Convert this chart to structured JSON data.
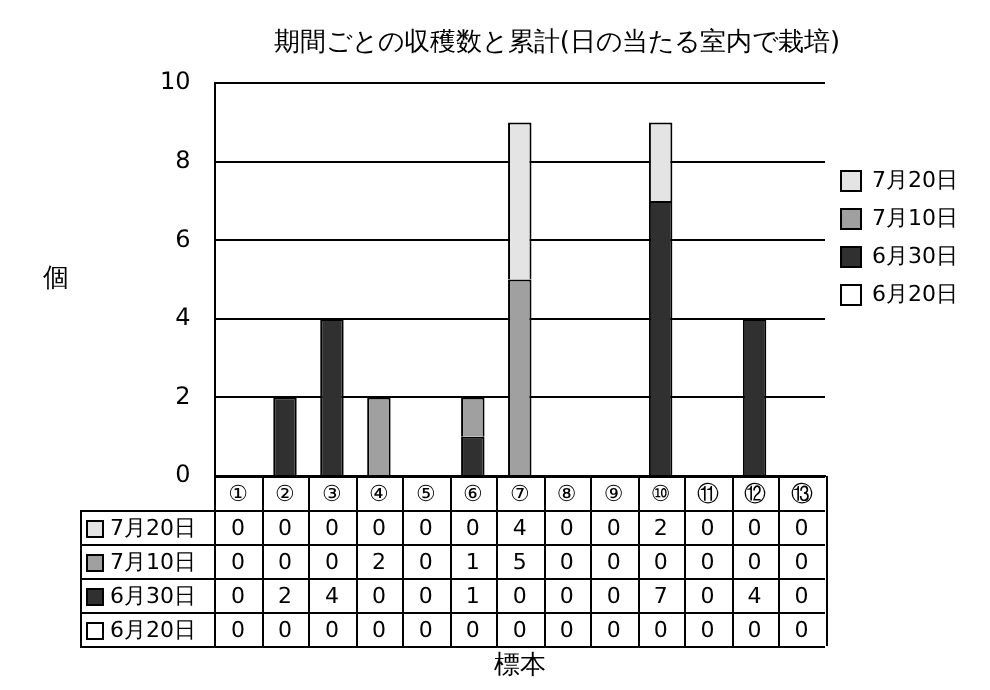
{
  "chart_data": {
    "type": "bar",
    "title": "期間ごとの収穫数と累計(日の当たる室内で栽培)",
    "annotations": [
      "標本"
    ],
    "ylabel": "個",
    "categories": [
      "①",
      "②",
      "③",
      "④",
      "⑤",
      "⑥",
      "⑦",
      "⑧",
      "⑨",
      "⑩",
      "⑪",
      "⑫",
      "⑬"
    ],
    "series": [
      {
        "name": "6月20日",
        "color": "#ffffff",
        "values": [
          0,
          0,
          0,
          0,
          0,
          0,
          0,
          0,
          0,
          0,
          0,
          0,
          0
        ]
      },
      {
        "name": "6月30日",
        "color": "#303030",
        "values": [
          0,
          2,
          4,
          0,
          0,
          1,
          0,
          0,
          0,
          7,
          0,
          4,
          0
        ]
      },
      {
        "name": "7月10日",
        "color": "#a0a0a0",
        "values": [
          0,
          0,
          0,
          2,
          0,
          1,
          5,
          0,
          0,
          0,
          0,
          0,
          0
        ]
      },
      {
        "name": "7月20日",
        "color": "#e4e4e4",
        "values": [
          0,
          0,
          0,
          0,
          0,
          0,
          4,
          0,
          0,
          2,
          0,
          0,
          0
        ]
      }
    ],
    "stacked": true,
    "ylim": [
      0,
      10
    ],
    "yticks": [
      0,
      2,
      4,
      6,
      8,
      10
    ],
    "grid": "y",
    "legend": "right",
    "data_labels": true
  }
}
